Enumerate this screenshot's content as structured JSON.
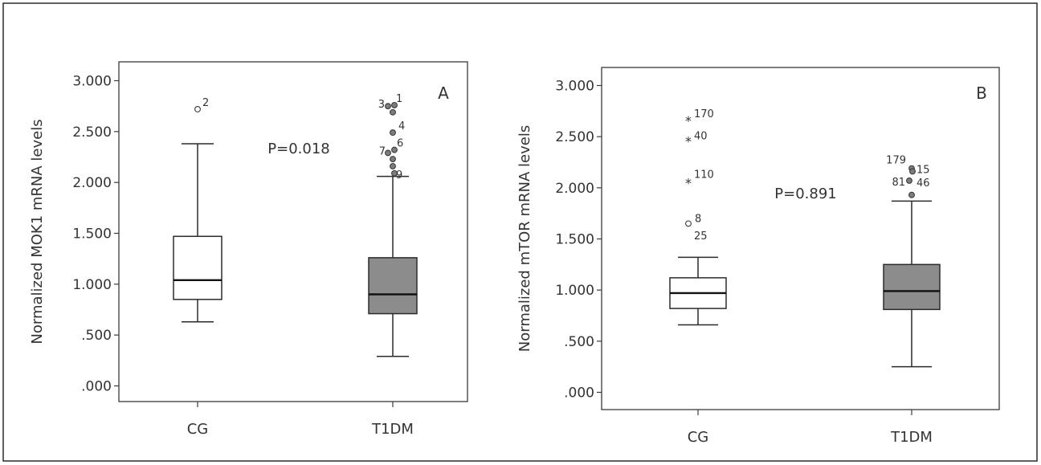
{
  "chart_data": [
    {
      "type": "box",
      "panel_letter": "A",
      "ylabel": "Normalized MOK1 mRNA levels",
      "ylim": [
        -0.1,
        3.1
      ],
      "yticks": [
        ".000",
        ".500",
        "1.000",
        "1.500",
        "2.000",
        "2.500",
        "3.000"
      ],
      "ytick_values": [
        0,
        0.5,
        1.0,
        1.5,
        2.0,
        2.5,
        3.0
      ],
      "annotation": "P=0.018",
      "groups": [
        {
          "name": "CG",
          "fill": "#ffffff",
          "min": 0.63,
          "q1": 0.85,
          "median": 1.04,
          "q3": 1.47,
          "max": 2.38,
          "outliers": [
            {
              "value": 2.72,
              "label": "2",
              "marker": "circle"
            }
          ]
        },
        {
          "name": "T1DM",
          "fill": "#8c8c8c",
          "min": 0.29,
          "q1": 0.71,
          "median": 0.9,
          "q3": 1.26,
          "max": 2.06,
          "outliers": [
            {
              "value": 2.75,
              "label": "3",
              "marker": "circle"
            },
            {
              "value": 2.76,
              "label": "1",
              "marker": "circle"
            },
            {
              "value": 2.69,
              "label": "",
              "marker": "circle"
            },
            {
              "value": 2.49,
              "label": "4",
              "marker": "circle"
            },
            {
              "value": 2.29,
              "label": "7",
              "marker": "circle"
            },
            {
              "value": 2.32,
              "label": "6",
              "marker": "circle"
            },
            {
              "value": 2.23,
              "label": "",
              "marker": "circle"
            },
            {
              "value": 2.16,
              "label": "",
              "marker": "circle"
            },
            {
              "value": 2.09,
              "label": "9",
              "marker": "circle"
            }
          ]
        }
      ]
    },
    {
      "type": "box",
      "panel_letter": "B",
      "ylabel": "Normalized mTOR mRNA levels",
      "ylim": [
        -0.1,
        3.1
      ],
      "yticks": [
        ".000",
        ".500",
        "1.000",
        "1.500",
        "2.000",
        "2.500",
        "3.000"
      ],
      "ytick_values": [
        0,
        0.5,
        1.0,
        1.5,
        2.0,
        2.5,
        3.0
      ],
      "annotation": "P=0.891",
      "groups": [
        {
          "name": "CG",
          "fill": "#ffffff",
          "min": 0.66,
          "q1": 0.82,
          "median": 0.97,
          "q3": 1.12,
          "max": 1.32,
          "outliers": [
            {
              "value": 2.66,
              "label": "170",
              "marker": "star"
            },
            {
              "value": 2.46,
              "label": "40",
              "marker": "star"
            },
            {
              "value": 2.05,
              "label": "110",
              "marker": "star"
            },
            {
              "value": 1.65,
              "label": "8",
              "marker": "circle"
            },
            {
              "value": 1.56,
              "label": "25",
              "marker": "none"
            }
          ]
        },
        {
          "name": "T1DM",
          "fill": "#8c8c8c",
          "min": 0.25,
          "q1": 0.81,
          "median": 0.99,
          "q3": 1.25,
          "max": 1.87,
          "outliers": [
            {
              "value": 2.19,
              "label": "179",
              "marker": "circle"
            },
            {
              "value": 2.16,
              "label": "15",
              "marker": "circle"
            },
            {
              "value": 2.07,
              "label": "81",
              "marker": "circle"
            },
            {
              "value": 2.06,
              "label": "46",
              "marker": "none"
            },
            {
              "value": 1.93,
              "label": "",
              "marker": "circle"
            }
          ]
        }
      ]
    }
  ]
}
